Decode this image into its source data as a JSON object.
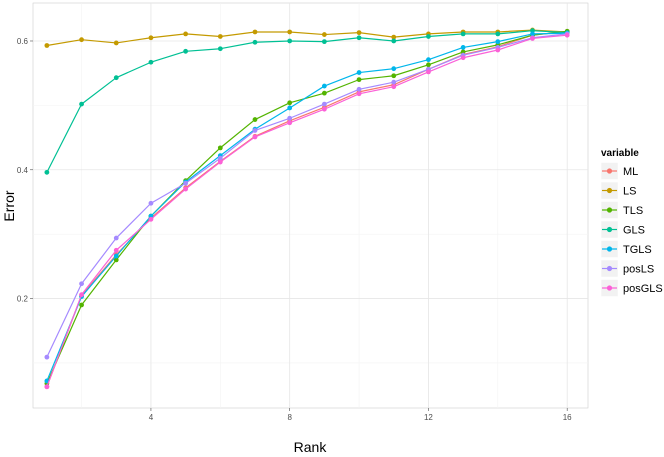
{
  "chart_data": {
    "type": "line",
    "xlabel": "Rank",
    "ylabel": "Error",
    "x": [
      1,
      2,
      3,
      4,
      5,
      6,
      7,
      8,
      9,
      10,
      11,
      12,
      13,
      14,
      15,
      16
    ],
    "xlim": [
      0.6,
      16.6
    ],
    "ylim": [
      0.03,
      0.659
    ],
    "xticks": [
      4,
      8,
      12,
      16
    ],
    "xtick_labels": [
      "4",
      "8",
      "12",
      "16"
    ],
    "yticks": [
      0.2,
      0.4,
      0.6
    ],
    "ytick_labels": [
      "0.2",
      "0.4",
      "0.6"
    ],
    "grid": true,
    "legend": {
      "title": "variable",
      "position": "right"
    },
    "series": [
      {
        "name": "ML",
        "color": "#F8766D",
        "values": [
          0.063,
          0.205,
          0.268,
          0.325,
          0.372,
          0.413,
          0.452,
          0.476,
          0.497,
          0.521,
          0.532,
          0.556,
          0.579,
          0.591,
          0.609,
          0.615
        ]
      },
      {
        "name": "LS",
        "color": "#C49A00",
        "values": [
          0.593,
          0.602,
          0.597,
          0.605,
          0.611,
          0.607,
          0.614,
          0.614,
          0.61,
          0.613,
          0.606,
          0.611,
          0.614,
          0.614,
          0.617,
          0.614
        ]
      },
      {
        "name": "TLS",
        "color": "#53B400",
        "values": [
          0.068,
          0.19,
          0.26,
          0.328,
          0.383,
          0.434,
          0.478,
          0.504,
          0.519,
          0.54,
          0.546,
          0.563,
          0.583,
          0.594,
          0.609,
          0.615
        ]
      },
      {
        "name": "GLS",
        "color": "#00C094",
        "values": [
          0.396,
          0.502,
          0.543,
          0.567,
          0.584,
          0.588,
          0.598,
          0.6,
          0.599,
          0.605,
          0.6,
          0.607,
          0.611,
          0.611,
          0.616,
          0.613
        ]
      },
      {
        "name": "TGLS",
        "color": "#00B6EB",
        "values": [
          0.072,
          0.203,
          0.266,
          0.328,
          0.381,
          0.422,
          0.463,
          0.496,
          0.53,
          0.551,
          0.557,
          0.571,
          0.59,
          0.599,
          0.611,
          0.612
        ]
      },
      {
        "name": "posLS",
        "color": "#A58AFF",
        "values": [
          0.109,
          0.223,
          0.294,
          0.348,
          0.379,
          0.418,
          0.461,
          0.48,
          0.502,
          0.525,
          0.536,
          0.556,
          0.578,
          0.59,
          0.605,
          0.611
        ]
      },
      {
        "name": "posGLS",
        "color": "#FB61D7",
        "values": [
          0.063,
          0.206,
          0.275,
          0.323,
          0.37,
          0.412,
          0.451,
          0.473,
          0.494,
          0.518,
          0.529,
          0.552,
          0.574,
          0.586,
          0.604,
          0.609
        ]
      }
    ]
  }
}
